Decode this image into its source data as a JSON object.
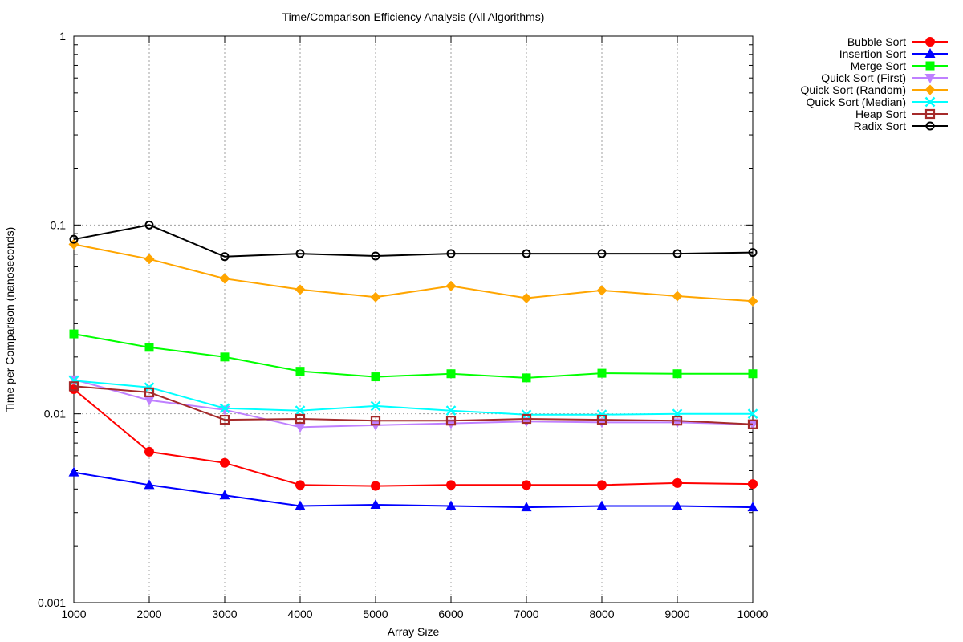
{
  "chart_data": {
    "type": "line",
    "title": "Time/Comparison Efficiency Analysis (All Algorithms)",
    "xlabel": "Array Size",
    "ylabel": "Time per Comparison (nanoseconds)",
    "xlim": [
      1000,
      10000
    ],
    "ylim": [
      0.001,
      1
    ],
    "yscale": "log",
    "grid": true,
    "legend_position": "top-right, outside plot",
    "x": [
      1000,
      2000,
      3000,
      4000,
      5000,
      6000,
      7000,
      8000,
      9000,
      10000
    ],
    "x_ticks": [
      "1000",
      "2000",
      "3000",
      "4000",
      "5000",
      "6000",
      "7000",
      "8000",
      "9000",
      "10000"
    ],
    "y_ticks": [
      {
        "value": 0.001,
        "label": "0.001"
      },
      {
        "value": 0.01,
        "label": "0.01"
      },
      {
        "value": 0.1,
        "label": "0.1"
      },
      {
        "value": 1,
        "label": "1"
      }
    ],
    "series": [
      {
        "name": "Bubble Sort",
        "color": "#ff0000",
        "marker": "circle-filled",
        "values": [
          0.0135,
          0.0063,
          0.0055,
          0.0042,
          0.00415,
          0.0042,
          0.0042,
          0.0042,
          0.0043,
          0.00425
        ]
      },
      {
        "name": "Insertion Sort",
        "color": "#0000ff",
        "marker": "triangle-up-filled",
        "values": [
          0.0049,
          0.0042,
          0.0037,
          0.00325,
          0.0033,
          0.00325,
          0.0032,
          0.00325,
          0.00325,
          0.0032
        ]
      },
      {
        "name": "Merge Sort",
        "color": "#00ff00",
        "marker": "square-filled",
        "values": [
          0.0265,
          0.0225,
          0.02,
          0.0168,
          0.0157,
          0.0163,
          0.0155,
          0.0164,
          0.0163,
          0.0163
        ]
      },
      {
        "name": "Quick Sort (First)",
        "color": "#bf80ff",
        "marker": "triangle-down-filled",
        "values": [
          0.0152,
          0.0118,
          0.0105,
          0.0085,
          0.0087,
          0.0089,
          0.0091,
          0.009,
          0.009,
          0.0088
        ]
      },
      {
        "name": "Quick Sort (Random)",
        "color": "#ffa500",
        "marker": "diamond-filled",
        "values": [
          0.079,
          0.066,
          0.052,
          0.0455,
          0.0415,
          0.0475,
          0.041,
          0.045,
          0.042,
          0.0395
        ]
      },
      {
        "name": "Quick Sort (Median)",
        "color": "#00ffff",
        "marker": "x",
        "values": [
          0.015,
          0.0138,
          0.0107,
          0.0104,
          0.011,
          0.0104,
          0.0099,
          0.0099,
          0.01,
          0.01
        ]
      },
      {
        "name": "Heap Sort",
        "color": "#a52a2a",
        "marker": "square-open",
        "values": [
          0.014,
          0.013,
          0.0093,
          0.0094,
          0.0092,
          0.0092,
          0.0094,
          0.0093,
          0.0092,
          0.0088
        ]
      },
      {
        "name": "Radix Sort",
        "color": "#000000",
        "marker": "circle-open",
        "values": [
          0.084,
          0.1,
          0.068,
          0.0705,
          0.0685,
          0.0705,
          0.0705,
          0.0705,
          0.0705,
          0.0715
        ]
      }
    ]
  }
}
